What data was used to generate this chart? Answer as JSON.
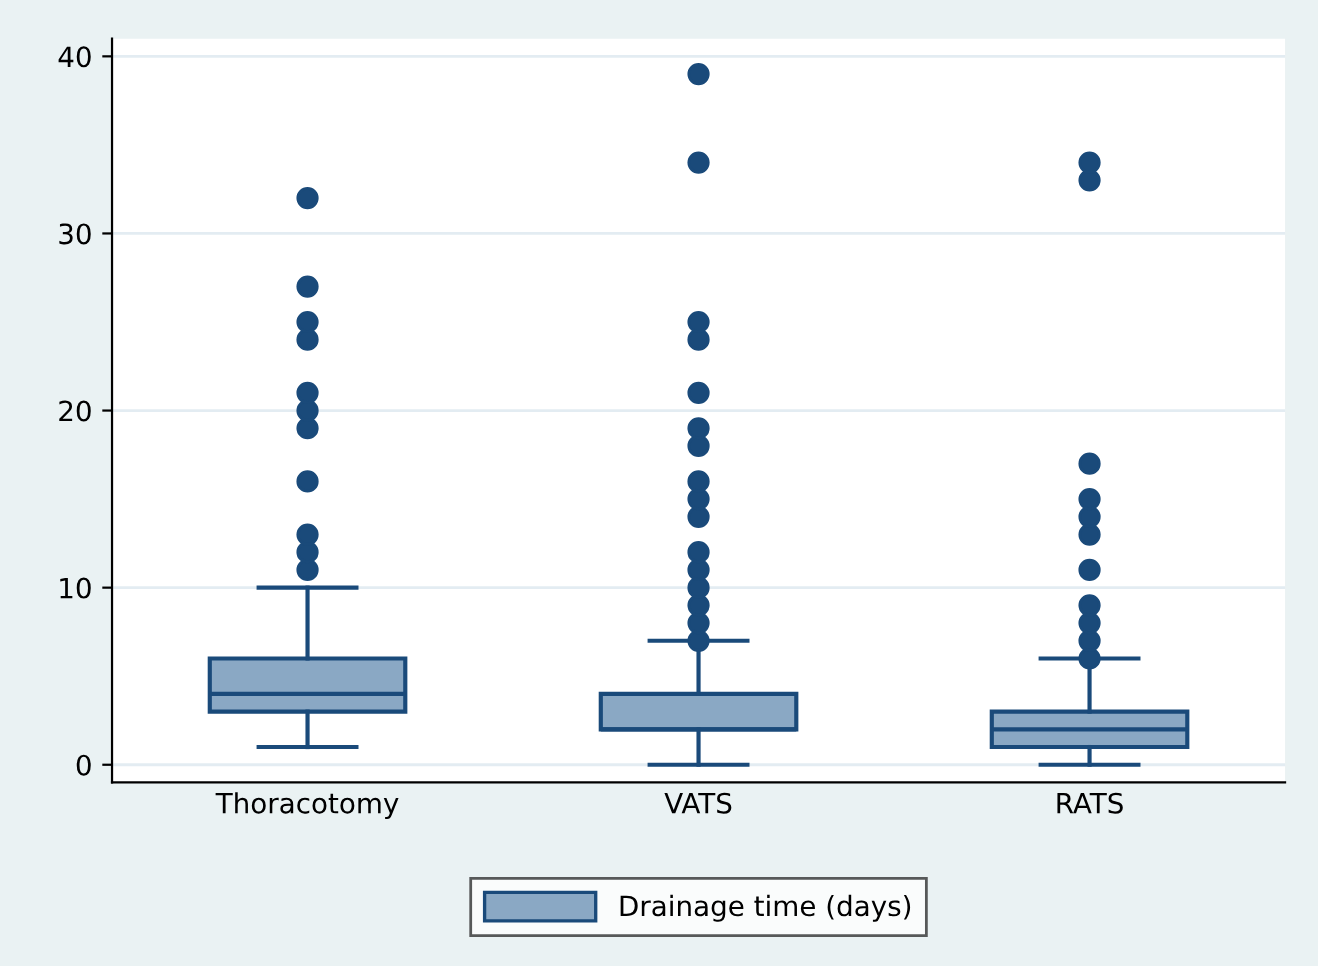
{
  "chart_data": {
    "type": "box",
    "categories": [
      "Thoracotomy",
      "VATS",
      "RATS"
    ],
    "series": [
      {
        "name": "Drainage time (days)",
        "color": "#8aa8c4",
        "boxes": [
          {
            "low": 1,
            "q1": 3,
            "median": 4,
            "q3": 6,
            "high": 10,
            "outliers": [
              11,
              12,
              13,
              16,
              19,
              20,
              21,
              24,
              25,
              27,
              32
            ]
          },
          {
            "low": 0,
            "q1": 2,
            "median": 2,
            "q3": 4,
            "high": 7,
            "outliers": [
              7,
              8,
              9,
              10,
              11,
              12,
              14,
              15,
              16,
              18,
              19,
              21,
              24,
              25,
              34,
              39
            ]
          },
          {
            "low": 0,
            "q1": 1,
            "median": 2,
            "q3": 3,
            "high": 6,
            "outliers": [
              6,
              7,
              8,
              9,
              11,
              13,
              14,
              15,
              17,
              33,
              34
            ]
          }
        ]
      }
    ],
    "ylim": [
      -1,
      41
    ],
    "yticks": [
      0,
      10,
      20,
      30,
      40
    ],
    "grid": "y",
    "legend": "bottom"
  }
}
